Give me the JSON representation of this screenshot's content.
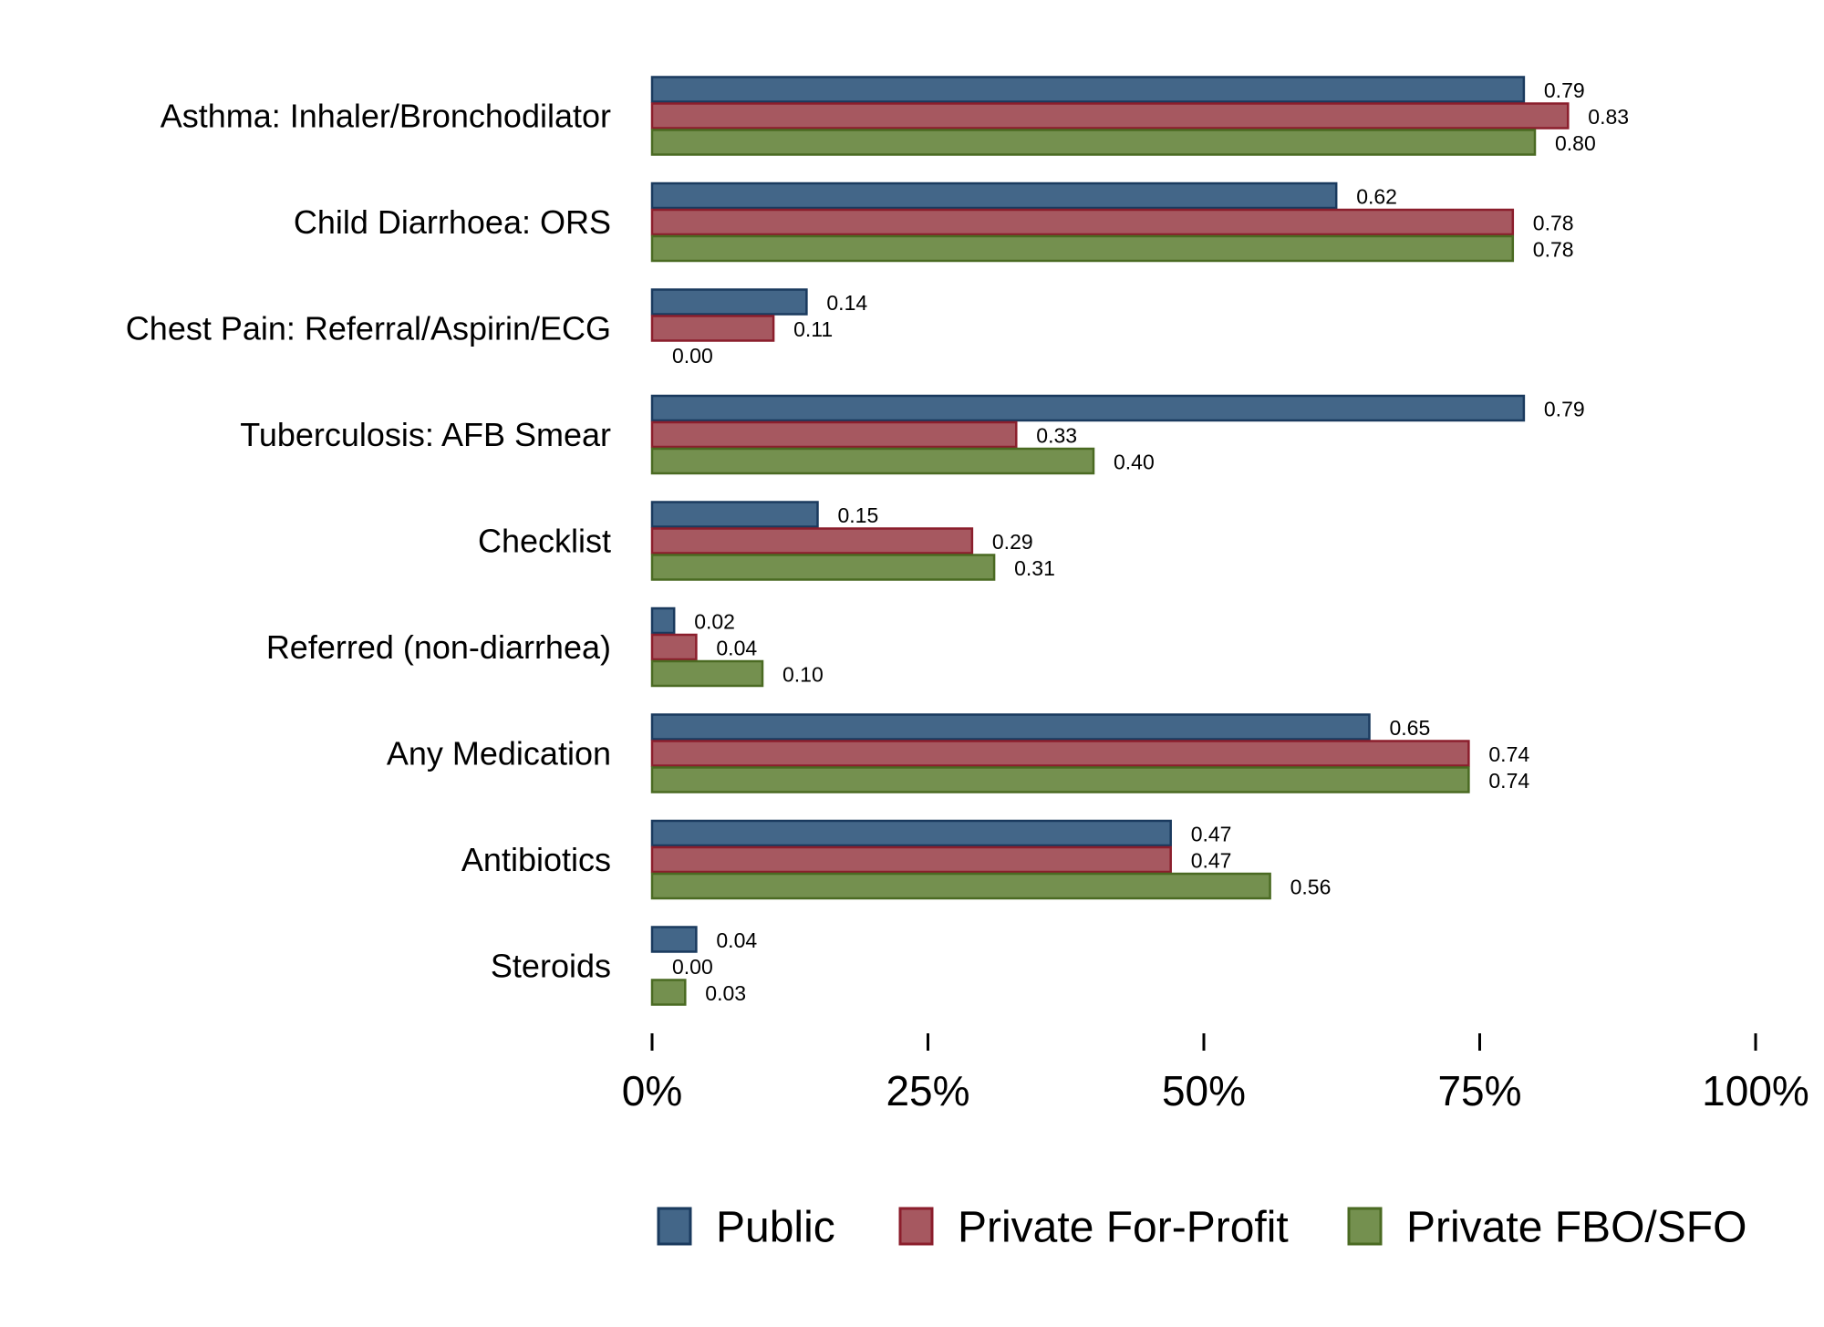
{
  "chart_data": {
    "type": "bar",
    "orientation": "horizontal",
    "categories": [
      "Asthma: Inhaler/Bronchodilator",
      "Child Diarrhoea: ORS",
      "Chest Pain: Referral/Aspirin/ECG",
      "Tuberculosis: AFB Smear",
      "Checklist",
      "Referred (non-diarrhea)",
      "Any Medication",
      "Antibiotics",
      "Steroids"
    ],
    "series": [
      {
        "name": "Public",
        "color": "#436688",
        "edge": "#1a3a5e",
        "values": [
          0.79,
          0.62,
          0.14,
          0.79,
          0.15,
          0.02,
          0.65,
          0.47,
          0.04
        ],
        "labels": [
          "0.79",
          "0.62",
          "0.14",
          "0.79",
          "0.15",
          "0.02",
          "0.65",
          "0.47",
          "0.04"
        ]
      },
      {
        "name": "Private For-Profit",
        "color": "#a65860",
        "edge": "#8b1e2c",
        "values": [
          0.83,
          0.78,
          0.11,
          0.33,
          0.29,
          0.04,
          0.74,
          0.47,
          0.0
        ],
        "labels": [
          "0.83",
          "0.78",
          "0.11",
          "0.33",
          "0.29",
          "0.04",
          "0.74",
          "0.47",
          "0.00"
        ]
      },
      {
        "name": "Private FBO/SFO",
        "color": "#74904f",
        "edge": "#4a6a22",
        "values": [
          0.8,
          0.78,
          0.0,
          0.4,
          0.31,
          0.1,
          0.74,
          0.56,
          0.03
        ],
        "labels": [
          "0.80",
          "0.78",
          "0.00",
          "0.40",
          "0.31",
          "0.10",
          "0.74",
          "0.56",
          "0.03"
        ]
      }
    ],
    "x_axis": {
      "ticks": [
        0,
        0.25,
        0.5,
        0.75,
        1.0
      ],
      "tick_labels": [
        "0%",
        "25%",
        "50%",
        "75%",
        "100%"
      ],
      "range": [
        0,
        1
      ]
    },
    "title": "",
    "xlabel": "",
    "ylabel": "",
    "grid": false,
    "legend_position": "bottom"
  }
}
